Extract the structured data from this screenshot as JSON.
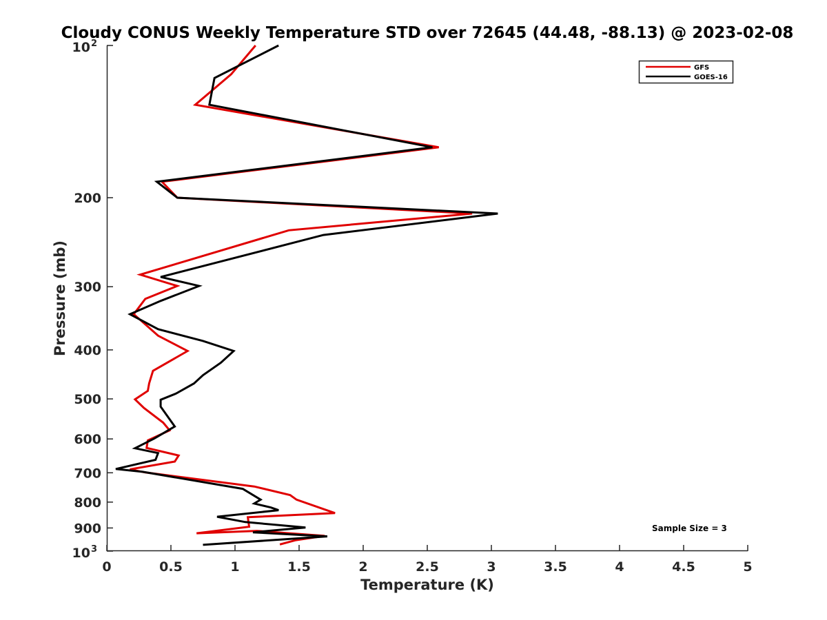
{
  "chart_data": {
    "type": "line",
    "title": "Cloudy CONUS Weekly Temperature STD over 72645 (44.48, -88.13) @ 2023-02-08",
    "xlabel": "Temperature (K)",
    "ylabel": "Pressure (mb)",
    "xlim": [
      0,
      5
    ],
    "ylim": [
      100,
      1000
    ],
    "yscale": "log",
    "y_reversed": true,
    "grid": false,
    "legend_position": "top-right",
    "annotation": "Sample Size = 3",
    "x_ticks": [
      "0",
      "0.5",
      "1",
      "1.5",
      "2",
      "2.5",
      "3",
      "3.5",
      "4",
      "4.5",
      "5"
    ],
    "y_ticks": [
      {
        "value": 100,
        "base": "10",
        "exp": "2"
      },
      {
        "value": 200,
        "label": "200"
      },
      {
        "value": 300,
        "label": "300"
      },
      {
        "value": 400,
        "label": "400"
      },
      {
        "value": 500,
        "label": "500"
      },
      {
        "value": 600,
        "label": "600"
      },
      {
        "value": 700,
        "label": "700"
      },
      {
        "value": 800,
        "label": "800"
      },
      {
        "value": 900,
        "label": "900"
      },
      {
        "value": 1000,
        "base": "10",
        "exp": "3"
      }
    ],
    "series": [
      {
        "name": "GFS",
        "color": "#e00000",
        "points": [
          [
            1.16,
            100
          ],
          [
            0.97,
            114
          ],
          [
            0.69,
            131
          ],
          [
            2.59,
            159
          ],
          [
            0.43,
            186
          ],
          [
            0.55,
            200
          ],
          [
            2.85,
            215
          ],
          [
            1.42,
            232
          ],
          [
            0.26,
            284
          ],
          [
            0.55,
            299
          ],
          [
            0.3,
            317
          ],
          [
            0.21,
            340
          ],
          [
            0.4,
            375
          ],
          [
            0.63,
            402
          ],
          [
            0.36,
            440
          ],
          [
            0.33,
            466
          ],
          [
            0.32,
            482
          ],
          [
            0.22,
            501
          ],
          [
            0.29,
            521
          ],
          [
            0.44,
            557
          ],
          [
            0.49,
            577
          ],
          [
            0.32,
            604
          ],
          [
            0.31,
            625
          ],
          [
            0.56,
            647
          ],
          [
            0.53,
            665
          ],
          [
            0.18,
            689
          ],
          [
            0.3,
            699
          ],
          [
            1.15,
            745
          ],
          [
            1.43,
            775
          ],
          [
            1.48,
            791
          ],
          [
            1.78,
            841
          ],
          [
            1.1,
            857
          ],
          [
            1.11,
            895
          ],
          [
            0.7,
            922
          ],
          [
            1.17,
            912
          ],
          [
            1.7,
            933
          ],
          [
            1.47,
            952
          ],
          [
            1.35,
            970
          ]
        ]
      },
      {
        "name": "GOES-16",
        "color": "#000000",
        "points": [
          [
            1.34,
            100
          ],
          [
            0.84,
            116
          ],
          [
            0.8,
            131
          ],
          [
            2.54,
            159
          ],
          [
            0.39,
            186
          ],
          [
            0.55,
            200
          ],
          [
            3.05,
            215
          ],
          [
            1.69,
            237
          ],
          [
            0.42,
            287
          ],
          [
            0.72,
            299
          ],
          [
            0.42,
            320
          ],
          [
            0.18,
            340
          ],
          [
            0.4,
            364
          ],
          [
            0.75,
            384
          ],
          [
            0.99,
            402
          ],
          [
            0.89,
            424
          ],
          [
            0.75,
            449
          ],
          [
            0.68,
            466
          ],
          [
            0.54,
            488
          ],
          [
            0.42,
            502
          ],
          [
            0.42,
            518
          ],
          [
            0.53,
            567
          ],
          [
            0.37,
            599
          ],
          [
            0.22,
            626
          ],
          [
            0.4,
            640
          ],
          [
            0.38,
            660
          ],
          [
            0.07,
            688
          ],
          [
            0.28,
            697
          ],
          [
            1.06,
            753
          ],
          [
            1.2,
            791
          ],
          [
            1.15,
            805
          ],
          [
            1.28,
            820
          ],
          [
            1.34,
            830
          ],
          [
            0.86,
            855
          ],
          [
            1.08,
            876
          ],
          [
            1.55,
            898
          ],
          [
            1.14,
            918
          ],
          [
            1.72,
            935
          ],
          [
            0.75,
            972
          ]
        ]
      }
    ]
  }
}
